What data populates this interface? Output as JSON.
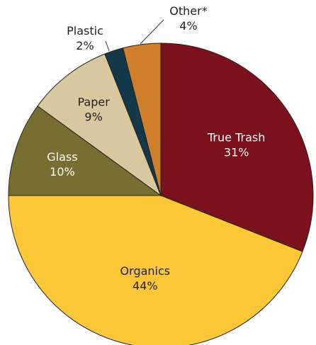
{
  "chart_data": {
    "type": "pie",
    "title": "",
    "start_angle_deg": 0,
    "direction": "clockwise",
    "slices": [
      {
        "label": "True Trash",
        "value": 31,
        "value_label": "31%",
        "color": "#7A111C",
        "text_color": "#ffffff"
      },
      {
        "label": "Organics",
        "value": 44,
        "value_label": "44%",
        "color": "#FBC736",
        "text_color": "#222222"
      },
      {
        "label": "Glass",
        "value": 10,
        "value_label": "10%",
        "color": "#766F31",
        "text_color": "#ffffff"
      },
      {
        "label": "Paper",
        "value": 9,
        "value_label": "9%",
        "color": "#D9C7A0",
        "text_color": "#222222"
      },
      {
        "label": "Plastic",
        "value": 2,
        "value_label": "2%",
        "color": "#12384A",
        "text_color": "#222222"
      },
      {
        "label": "Other*",
        "value": 4,
        "value_label": "4%",
        "color": "#CF7F2C",
        "text_color": "#222222"
      }
    ]
  }
}
